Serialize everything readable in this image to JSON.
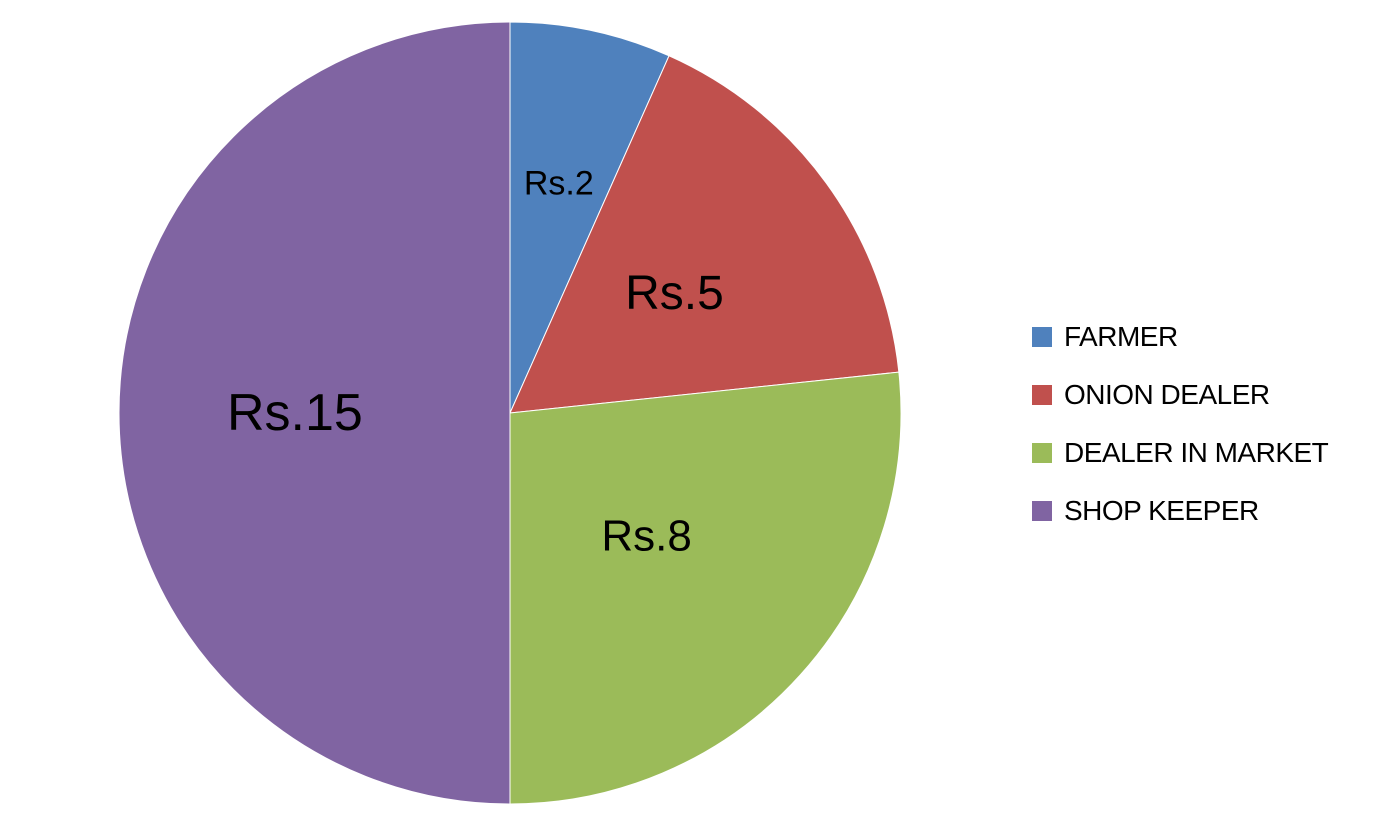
{
  "chart_data": {
    "type": "pie",
    "categories": [
      "FARMER",
      "ONION DEALER",
      "DEALER IN MARKET",
      "SHOP KEEPER"
    ],
    "values": [
      2,
      5,
      8,
      15
    ],
    "data_labels": [
      "Rs.2",
      "Rs.5",
      "Rs.8",
      "Rs.15"
    ],
    "colors": [
      "#4F81BD",
      "#C0504D",
      "#9BBB59",
      "#8064A2"
    ],
    "legend_position": "right",
    "start_angle": "top",
    "direction": "clockwise"
  }
}
